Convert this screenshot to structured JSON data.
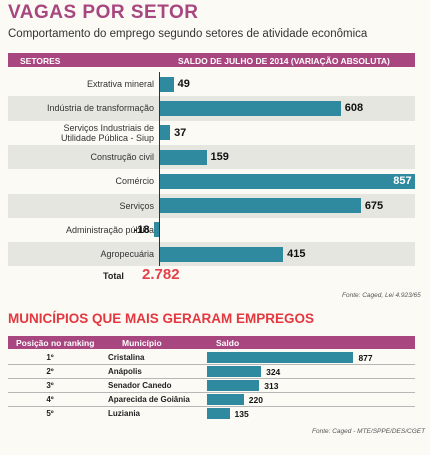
{
  "title": "VAGAS POR SETOR",
  "subtitle": "Comportamento do emprego segundo setores de atividade econômica",
  "sector_header": {
    "col1": "SETORES",
    "col2": "SALDO DE JULHO DE 2014 (VARIAÇÃO ABSOLUTA)"
  },
  "total_label": "Total",
  "total_value": "2.782",
  "source1": "Fonte: Caged, Lei 4.923/65",
  "title2": "MUNICÍPIOS QUE MAIS GERARAM EMPREGOS",
  "muni_header": {
    "col1": "Posição no ranking",
    "col2": "Município",
    "col3": "Saldo"
  },
  "source2": "Fonte: Caged - MTE/SPPE/DES/CGET",
  "colors": {
    "accent": "#a8467f",
    "bar": "#2f8aa0",
    "highlight": "#e43f4a"
  },
  "chart_data": [
    {
      "type": "bar",
      "orientation": "horizontal",
      "title": "VAGAS POR SETOR",
      "categories": [
        "Extrativa mineral",
        "Indústria de transformação",
        "Serviços Industriais de Utilidade Pública - Siup",
        "Construção civil",
        "Comércio",
        "Serviços",
        "Administração pública",
        "Agropecuária"
      ],
      "category_lines": [
        [
          "Extrativa mineral"
        ],
        [
          "Indústria de transformação"
        ],
        [
          "Serviços Industriais de",
          "Utilidade Pública - Siup"
        ],
        [
          "Construção civil"
        ],
        [
          "Comércio"
        ],
        [
          "Serviços"
        ],
        [
          "Administração pública"
        ],
        [
          "Agropecuária"
        ]
      ],
      "values": [
        49,
        608,
        37,
        159,
        857,
        675,
        -18,
        415
      ],
      "labels": [
        "49",
        "608",
        "37",
        "159",
        "857",
        "675",
        "-18",
        "415"
      ]
    },
    {
      "type": "bar",
      "orientation": "horizontal",
      "title": "MUNICÍPIOS QUE MAIS GERARAM EMPREGOS",
      "positions": [
        "1º",
        "2º",
        "3º",
        "4º",
        "5º"
      ],
      "categories": [
        "Cristalina",
        "Anápolis",
        "Senador Canedo",
        "Aparecida de Goiânia",
        "Luziania"
      ],
      "values": [
        877,
        324,
        313,
        220,
        135
      ],
      "labels": [
        "877",
        "324",
        "313",
        "220",
        "135"
      ]
    }
  ]
}
